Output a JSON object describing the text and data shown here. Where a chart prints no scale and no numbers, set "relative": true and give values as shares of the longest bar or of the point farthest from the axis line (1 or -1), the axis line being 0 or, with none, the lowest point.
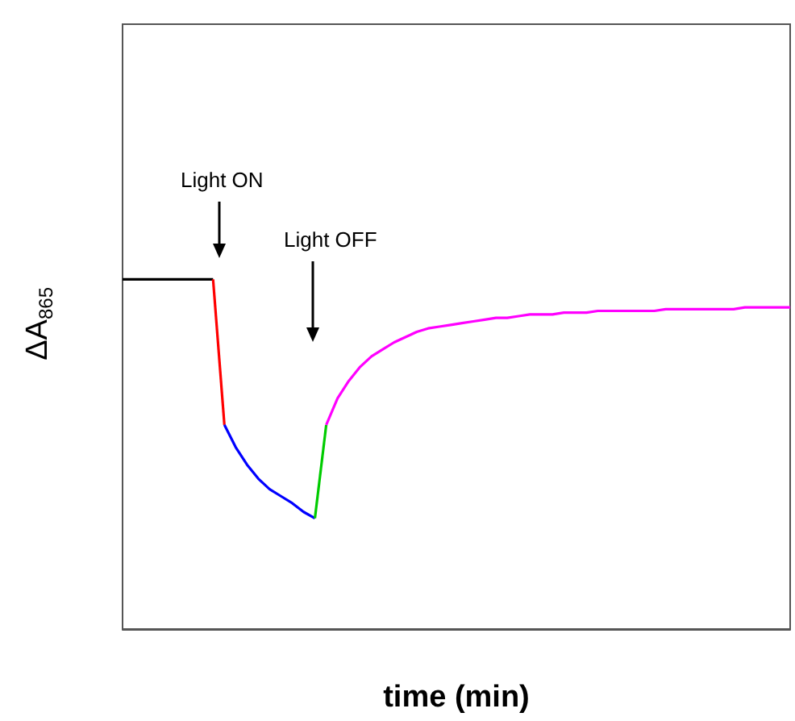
{
  "chart_data": {
    "type": "line",
    "relative": true,
    "xlabel": "time (min)",
    "ylabel": "ΔA$_{865}$",
    "categories": [
      null,
      null,
      null,
      null,
      null,
      null,
      null,
      null,
      null,
      null,
      null,
      null,
      null,
      null,
      null,
      null,
      null,
      null,
      null,
      null,
      null,
      null,
      null,
      null,
      null,
      null,
      null,
      null,
      null,
      null,
      null,
      null,
      null,
      null,
      null,
      null,
      null,
      null,
      null,
      null,
      null,
      null,
      null,
      null,
      null,
      null,
      null,
      null,
      null,
      null,
      null,
      null,
      null,
      null,
      null,
      null,
      null,
      null,
      null,
      null
    ],
    "series": [
      {
        "color": "#000000",
        "values": [
          1,
          1,
          1,
          1,
          1,
          1,
          1,
          1,
          1,
          null,
          null,
          null,
          null,
          null,
          null,
          null,
          null,
          null,
          null,
          null,
          null,
          null,
          null,
          null,
          null,
          null,
          null,
          null,
          null,
          null,
          null,
          null,
          null,
          null,
          null,
          null,
          null,
          null,
          null,
          null,
          null,
          null,
          null,
          null,
          null,
          null,
          null,
          null,
          null,
          null,
          null,
          null,
          null,
          null,
          null,
          null,
          null,
          null,
          null,
          null
        ]
      },
      {
        "color": "#ff0000",
        "values": [
          null,
          null,
          null,
          null,
          null,
          null,
          null,
          null,
          1,
          0.584,
          null,
          null,
          null,
          null,
          null,
          null,
          null,
          null,
          null,
          null,
          null,
          null,
          null,
          null,
          null,
          null,
          null,
          null,
          null,
          null,
          null,
          null,
          null,
          null,
          null,
          null,
          null,
          null,
          null,
          null,
          null,
          null,
          null,
          null,
          null,
          null,
          null,
          null,
          null,
          null,
          null,
          null,
          null,
          null,
          null,
          null,
          null,
          null,
          null,
          null
        ]
      },
      {
        "color": "#0000ff",
        "values": [
          null,
          null,
          null,
          null,
          null,
          null,
          null,
          null,
          null,
          0.584,
          0.52,
          0.47,
          0.43,
          0.4,
          0.38,
          0.36,
          0.335,
          0.317,
          null,
          null,
          null,
          null,
          null,
          null,
          null,
          null,
          null,
          null,
          null,
          null,
          null,
          null,
          null,
          null,
          null,
          null,
          null,
          null,
          null,
          null,
          null,
          null,
          null,
          null,
          null,
          null,
          null,
          null,
          null,
          null,
          null,
          null,
          null,
          null,
          null,
          null,
          null,
          null,
          null,
          null
        ]
      },
      {
        "color": "#00cc00",
        "values": [
          null,
          null,
          null,
          null,
          null,
          null,
          null,
          null,
          null,
          null,
          null,
          null,
          null,
          null,
          null,
          null,
          null,
          0.317,
          0.584,
          null,
          null,
          null,
          null,
          null,
          null,
          null,
          null,
          null,
          null,
          null,
          null,
          null,
          null,
          null,
          null,
          null,
          null,
          null,
          null,
          null,
          null,
          null,
          null,
          null,
          null,
          null,
          null,
          null,
          null,
          null,
          null,
          null,
          null,
          null,
          null,
          null,
          null,
          null,
          null,
          null
        ]
      },
      {
        "color": "#ff00ff",
        "values": [
          null,
          null,
          null,
          null,
          null,
          null,
          null,
          null,
          null,
          null,
          null,
          null,
          null,
          null,
          null,
          null,
          null,
          null,
          0.584,
          0.66,
          0.71,
          0.75,
          0.78,
          0.8,
          0.82,
          0.835,
          0.85,
          0.86,
          0.865,
          0.87,
          0.875,
          0.88,
          0.885,
          0.89,
          0.89,
          0.895,
          0.9,
          0.9,
          0.9,
          0.905,
          0.905,
          0.905,
          0.91,
          0.91,
          0.91,
          0.91,
          0.91,
          0.91,
          0.915,
          0.915,
          0.915,
          0.915,
          0.915,
          0.915,
          0.915,
          0.92,
          0.92,
          0.92,
          0.92,
          0.92
        ]
      }
    ],
    "annotations": [
      "Light ON",
      "Light OFF"
    ],
    "grid": false,
    "marker": "none"
  }
}
